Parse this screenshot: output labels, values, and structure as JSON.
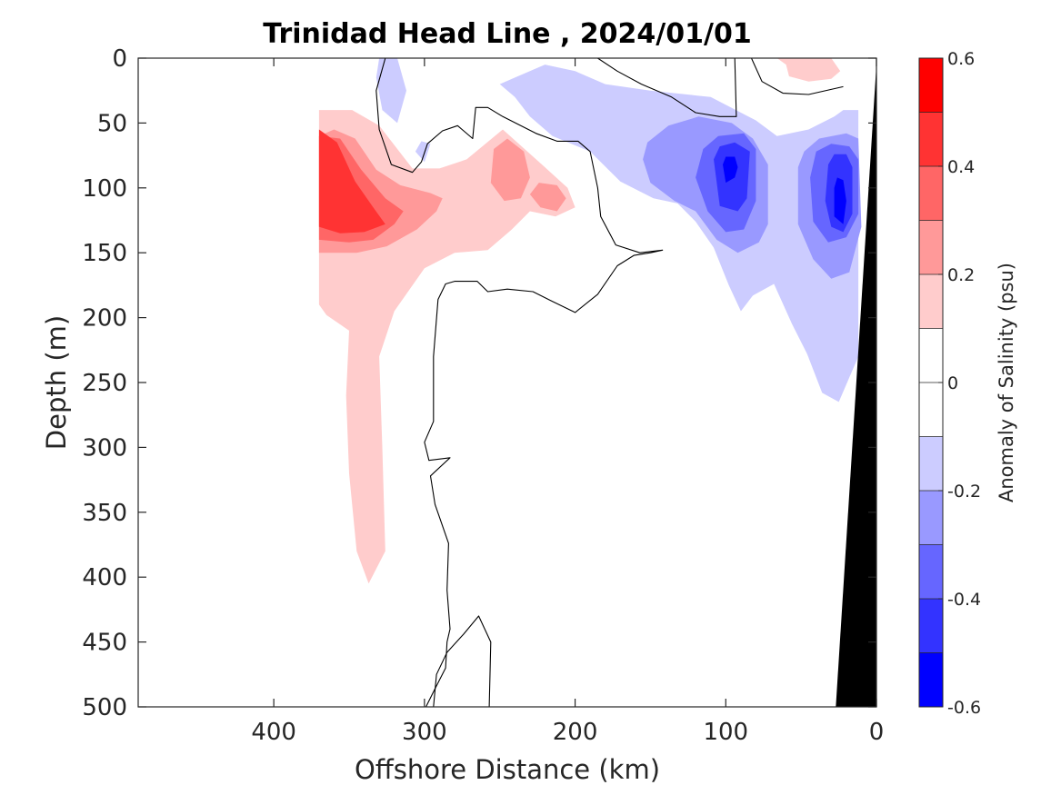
{
  "chart_data": {
    "type": "heatmap",
    "title": "Trinidad Head Line , 2024/01/01",
    "xlabel": "Offshore Distance (km)",
    "ylabel": "Depth (m)",
    "colorbar_label": "Anomaly of Salinity (psu)",
    "xlim": [
      490,
      0
    ],
    "ylim": [
      500,
      0
    ],
    "x_reversed": true,
    "y_reversed": true,
    "x_ticks": [
      400,
      300,
      200,
      100,
      0
    ],
    "y_ticks": [
      0,
      50,
      100,
      150,
      200,
      250,
      300,
      350,
      400,
      450,
      500
    ],
    "colorbar": {
      "range": [
        -0.6,
        0.6
      ],
      "levels": [
        -0.6,
        -0.5,
        -0.4,
        -0.3,
        -0.2,
        -0.1,
        0,
        0.1,
        0.2,
        0.3,
        0.4,
        0.5,
        0.6
      ],
      "ticks": [
        -0.6,
        -0.4,
        -0.2,
        0,
        0.2,
        0.4,
        0.6
      ],
      "colors": [
        "#0000ff",
        "#3333ff",
        "#6666ff",
        "#9999ff",
        "#ccccff",
        "#ffffff",
        "#ffffff",
        "#ffcccc",
        "#ff9999",
        "#ff6666",
        "#ff3333",
        "#ff0000"
      ]
    },
    "bathymetry": {
      "color": "#000000",
      "points": [
        [
          0,
          5
        ],
        [
          0,
          500
        ],
        [
          27,
          500
        ]
      ]
    },
    "zero_contour": {
      "color": "#000000",
      "segments": [
        [
          [
            326,
            0
          ],
          [
            332,
            25
          ],
          [
            330,
            55
          ],
          [
            322,
            82
          ],
          [
            308,
            88
          ],
          [
            302,
            80
          ],
          [
            298,
            66
          ],
          [
            288,
            56
          ],
          [
            278,
            52
          ],
          [
            268,
            62
          ],
          [
            266,
            38
          ],
          [
            258,
            38
          ],
          [
            248,
            45
          ],
          [
            226,
            58
          ],
          [
            212,
            64
          ],
          [
            198,
            64
          ],
          [
            190,
            72
          ],
          [
            185,
            100
          ],
          [
            183,
            122
          ],
          [
            173,
            144
          ],
          [
            157,
            150
          ],
          [
            142,
            148
          ],
          [
            150,
            150
          ],
          [
            161,
            152
          ],
          [
            172,
            160
          ],
          [
            185,
            182
          ],
          [
            200,
            196
          ],
          [
            216,
            187
          ],
          [
            228,
            180
          ],
          [
            245,
            178
          ],
          [
            258,
            180
          ],
          [
            265,
            172
          ],
          [
            280,
            172
          ],
          [
            286,
            174
          ],
          [
            291,
            186
          ],
          [
            294,
            230
          ],
          [
            294,
            280
          ],
          [
            300,
            296
          ],
          [
            297,
            310
          ],
          [
            283,
            308
          ],
          [
            296,
            322
          ],
          [
            293,
            344
          ],
          [
            284,
            374
          ],
          [
            285,
            410
          ],
          [
            283,
            440
          ],
          [
            285,
            450
          ],
          [
            286,
            470
          ],
          [
            293,
            486
          ],
          [
            299,
            500
          ]
        ],
        [
          [
            94,
            0
          ],
          [
            93,
            45
          ],
          [
            104,
            45
          ],
          [
            120,
            42
          ],
          [
            136,
            30
          ],
          [
            156,
            20
          ],
          [
            172,
            10
          ],
          [
            185,
            0
          ]
        ],
        [
          [
            22,
            22
          ],
          [
            45,
            28
          ],
          [
            62,
            27
          ],
          [
            76,
            18
          ],
          [
            83,
            0
          ]
        ],
        [
          [
            257,
            500
          ],
          [
            256,
            450
          ],
          [
            264,
            430
          ],
          [
            274,
            444
          ],
          [
            285,
            458
          ],
          [
            292,
            475
          ],
          [
            294,
            500
          ]
        ]
      ]
    },
    "anomaly_regions": [
      {
        "value": 0.15,
        "points": [
          [
            370,
            40
          ],
          [
            348,
            40
          ],
          [
            330,
            52
          ],
          [
            308,
            85
          ],
          [
            290,
            85
          ],
          [
            272,
            78
          ],
          [
            248,
            55
          ],
          [
            222,
            82
          ],
          [
            205,
            100
          ],
          [
            200,
            115
          ],
          [
            213,
            122
          ],
          [
            230,
            118
          ],
          [
            242,
            132
          ],
          [
            258,
            148
          ],
          [
            280,
            150
          ],
          [
            300,
            162
          ],
          [
            320,
            195
          ],
          [
            330,
            230
          ],
          [
            328,
            300
          ],
          [
            326,
            380
          ],
          [
            337,
            405
          ],
          [
            345,
            380
          ],
          [
            350,
            320
          ],
          [
            352,
            260
          ],
          [
            350,
            210
          ],
          [
            365,
            198
          ],
          [
            370,
            190
          ]
        ]
      },
      {
        "value": 0.15,
        "points": [
          [
            60,
            5
          ],
          [
            66,
            0
          ],
          [
            30,
            0
          ],
          [
            24,
            10
          ],
          [
            30,
            16
          ],
          [
            45,
            18
          ],
          [
            58,
            14
          ]
        ]
      },
      {
        "value": 0.25,
        "points": [
          [
            370,
            60
          ],
          [
            360,
            55
          ],
          [
            346,
            62
          ],
          [
            332,
            86
          ],
          [
            316,
            98
          ],
          [
            296,
            104
          ],
          [
            288,
            108
          ],
          [
            292,
            118
          ],
          [
            305,
            132
          ],
          [
            325,
            145
          ],
          [
            345,
            150
          ],
          [
            370,
            150
          ]
        ]
      },
      {
        "value": 0.25,
        "points": [
          [
            254,
            70
          ],
          [
            245,
            62
          ],
          [
            234,
            72
          ],
          [
            230,
            92
          ],
          [
            236,
            108
          ],
          [
            247,
            110
          ],
          [
            256,
            96
          ]
        ]
      },
      {
        "value": 0.25,
        "points": [
          [
            230,
            105
          ],
          [
            223,
            115
          ],
          [
            212,
            118
          ],
          [
            206,
            108
          ],
          [
            212,
            98
          ],
          [
            224,
            96
          ]
        ]
      },
      {
        "value": 0.35,
        "points": [
          [
            370,
            60
          ],
          [
            356,
            62
          ],
          [
            342,
            86
          ],
          [
            326,
            108
          ],
          [
            314,
            118
          ],
          [
            320,
            128
          ],
          [
            334,
            140
          ],
          [
            350,
            142
          ],
          [
            370,
            140
          ]
        ]
      },
      {
        "value": 0.45,
        "points": [
          [
            370,
            55
          ],
          [
            358,
            65
          ],
          [
            346,
            95
          ],
          [
            334,
            115
          ],
          [
            326,
            128
          ],
          [
            340,
            134
          ],
          [
            356,
            135
          ],
          [
            370,
            130
          ]
        ]
      },
      {
        "value": -0.15,
        "points": [
          [
            318,
            0
          ],
          [
            312,
            25
          ],
          [
            318,
            50
          ],
          [
            328,
            40
          ],
          [
            332,
            15
          ],
          [
            330,
            0
          ]
        ]
      },
      {
        "value": -0.15,
        "points": [
          [
            302,
            64
          ],
          [
            296,
            66
          ],
          [
            300,
            80
          ],
          [
            306,
            72
          ]
        ]
      },
      {
        "value": -0.15,
        "points": [
          [
            250,
            20
          ],
          [
            240,
            30
          ],
          [
            230,
            45
          ],
          [
            215,
            60
          ],
          [
            190,
            72
          ],
          [
            170,
            95
          ],
          [
            148,
            108
          ],
          [
            132,
            112
          ],
          [
            120,
            126
          ],
          [
            108,
            146
          ],
          [
            98,
            175
          ],
          [
            90,
            195
          ],
          [
            82,
            183
          ],
          [
            68,
            174
          ],
          [
            56,
            205
          ],
          [
            46,
            228
          ],
          [
            36,
            258
          ],
          [
            25,
            265
          ],
          [
            12,
            230
          ],
          [
            12,
            40
          ],
          [
            22,
            40
          ],
          [
            28,
            45
          ],
          [
            45,
            55
          ],
          [
            66,
            60
          ],
          [
            80,
            48
          ],
          [
            110,
            30
          ],
          [
            150,
            25
          ],
          [
            180,
            20
          ],
          [
            200,
            10
          ],
          [
            220,
            5
          ],
          [
            240,
            15
          ]
        ]
      },
      {
        "value": -0.25,
        "points": [
          [
            155,
            78
          ],
          [
            152,
            65
          ],
          [
            138,
            52
          ],
          [
            118,
            45
          ],
          [
            96,
            50
          ],
          [
            82,
            62
          ],
          [
            72,
            82
          ],
          [
            72,
            128
          ],
          [
            78,
            142
          ],
          [
            92,
            150
          ],
          [
            106,
            140
          ],
          [
            120,
            118
          ],
          [
            134,
            110
          ],
          [
            150,
            96
          ]
        ]
      },
      {
        "value": -0.25,
        "points": [
          [
            52,
            84
          ],
          [
            48,
            72
          ],
          [
            38,
            62
          ],
          [
            20,
            58
          ],
          [
            12,
            62
          ],
          [
            10,
            130
          ],
          [
            18,
            165
          ],
          [
            30,
            170
          ],
          [
            42,
            155
          ],
          [
            52,
            128
          ]
        ]
      },
      {
        "value": -0.35,
        "points": [
          [
            120,
            92
          ],
          [
            115,
            70
          ],
          [
            105,
            60
          ],
          [
            88,
            58
          ],
          [
            80,
            70
          ],
          [
            80,
            110
          ],
          [
            88,
            132
          ],
          [
            100,
            134
          ],
          [
            112,
            118
          ]
        ]
      },
      {
        "value": -0.35,
        "points": [
          [
            44,
            92
          ],
          [
            40,
            72
          ],
          [
            30,
            66
          ],
          [
            18,
            68
          ],
          [
            12,
            78
          ],
          [
            12,
            120
          ],
          [
            20,
            138
          ],
          [
            32,
            142
          ],
          [
            42,
            126
          ]
        ]
      },
      {
        "value": -0.45,
        "points": [
          [
            108,
            78
          ],
          [
            104,
            68
          ],
          [
            94,
            65
          ],
          [
            84,
            72
          ],
          [
            86,
            108
          ],
          [
            92,
            118
          ],
          [
            104,
            114
          ]
        ]
      },
      {
        "value": -0.45,
        "points": [
          [
            32,
            82
          ],
          [
            28,
            74
          ],
          [
            20,
            74
          ],
          [
            16,
            84
          ],
          [
            16,
            120
          ],
          [
            22,
            134
          ],
          [
            30,
            130
          ],
          [
            34,
            110
          ]
        ]
      },
      {
        "value": -0.55,
        "points": [
          [
            102,
            82
          ],
          [
            100,
            76
          ],
          [
            94,
            76
          ],
          [
            92,
            84
          ],
          [
            94,
            92
          ],
          [
            100,
            96
          ]
        ]
      },
      {
        "value": -0.55,
        "points": [
          [
            28,
            100
          ],
          [
            26,
            92
          ],
          [
            22,
            94
          ],
          [
            20,
            110
          ],
          [
            22,
            128
          ],
          [
            28,
            122
          ]
        ]
      }
    ]
  }
}
